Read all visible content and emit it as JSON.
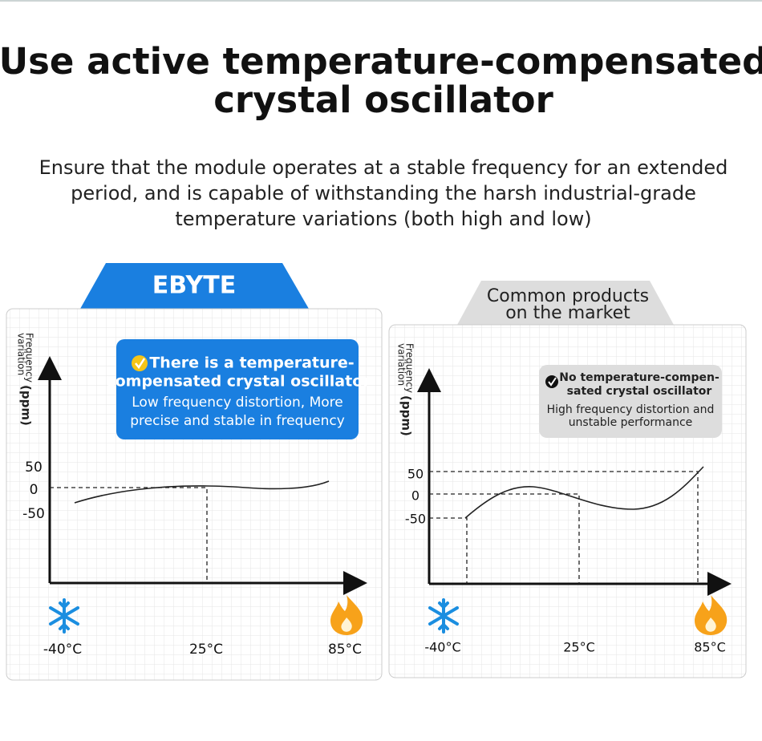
{
  "header": {
    "title": [
      "Use active temperature-compensated",
      "crystal oscillator"
    ],
    "subtitle": [
      "Ensure that the module operates at a stable frequency for an extended",
      "period, and is capable of withstanding the harsh industrial-grade",
      "temperature variations (both high and low)"
    ]
  },
  "panels": [
    {
      "tab": [
        "EBYTE"
      ],
      "callout": {
        "heading": [
          "There is a temperature-",
          "compensated crystal oscillator"
        ],
        "body": [
          "Low frequency distortion, More",
          "precise and stable in frequency"
        ]
      },
      "y_axis_label": [
        "Frequency",
        "variation",
        "(ppm)"
      ],
      "y_ticks": [
        "50",
        "0",
        "-50"
      ],
      "x_labels": [
        "-40°C",
        "25°C",
        "85°C"
      ]
    },
    {
      "tab": [
        "Common products",
        "on the market"
      ],
      "callout": {
        "heading": [
          "No temperature-compen-",
          "sated crystal oscillator"
        ],
        "body": [
          "High frequency distortion and",
          "unstable performance"
        ]
      },
      "y_axis_label": [
        "Frequency",
        "variation",
        "(ppm)"
      ],
      "y_ticks": [
        "50",
        "0",
        "-50"
      ],
      "x_labels": [
        "-40°C",
        "25°C",
        "85°C"
      ]
    }
  ]
}
